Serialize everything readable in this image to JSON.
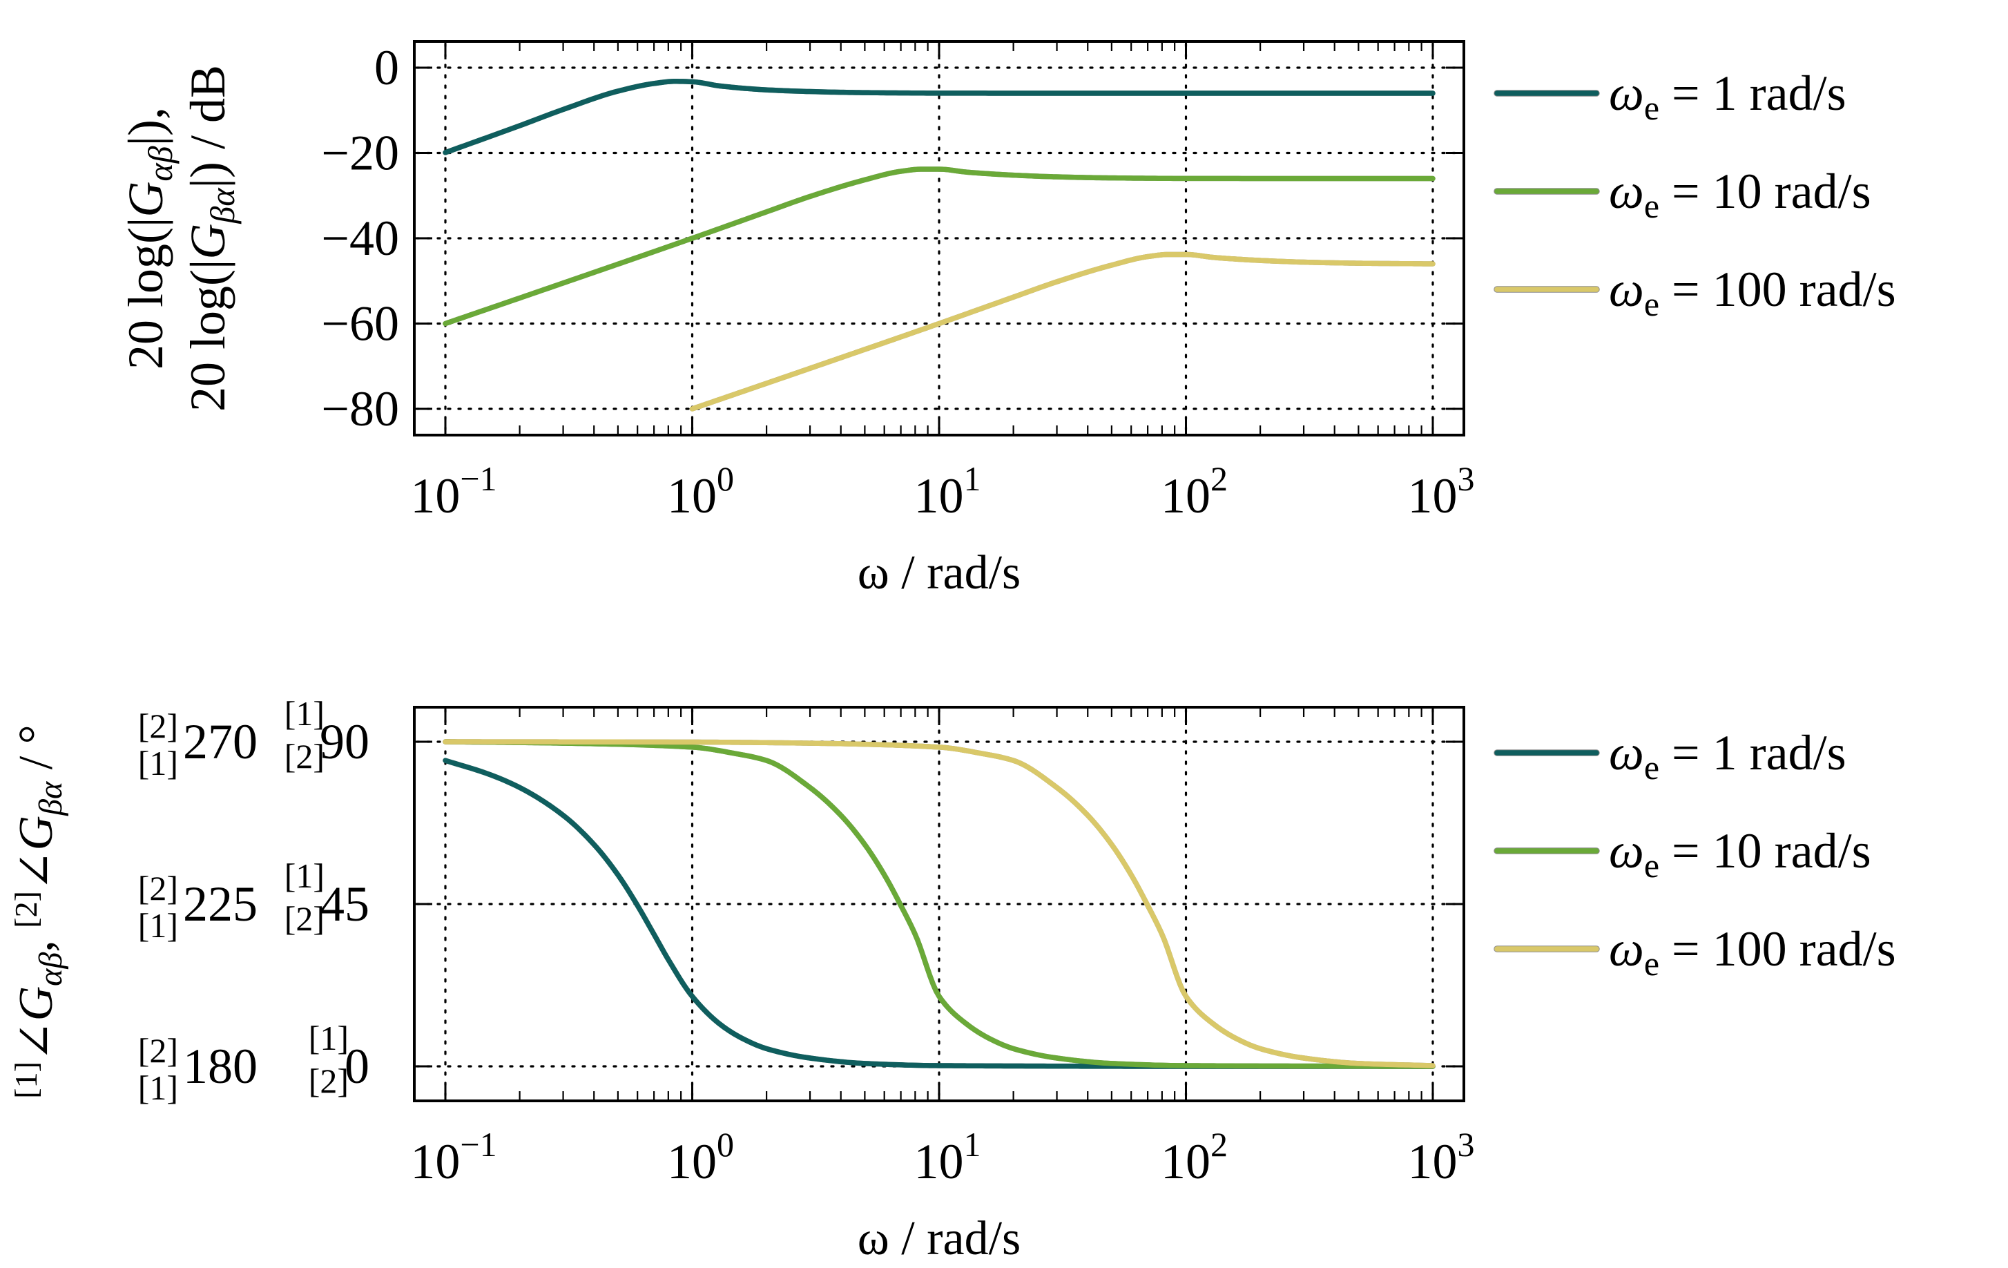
{
  "colors": {
    "we1": "#0f5e5e",
    "we10": "#6aa938",
    "we100": "#d9c869"
  },
  "chart_data": [
    {
      "type": "line",
      "xscale": "log",
      "xlim": [
        0.1,
        1000
      ],
      "ylim": [
        -80,
        0
      ],
      "grid": true,
      "legend_position": "outside-right",
      "xlabel": "ω / rad/s",
      "ylabel_lines": [
        "20 log(|G_αβ|),",
        "20 log(|G_βα|) / dB"
      ],
      "x_ticks": [
        {
          "base": "10",
          "exp": "−1"
        },
        {
          "base": "10",
          "exp": "0"
        },
        {
          "base": "10",
          "exp": "1"
        },
        {
          "base": "10",
          "exp": "2"
        },
        {
          "base": "10",
          "exp": "3"
        }
      ],
      "y_ticks": [
        {
          "value": 0,
          "label": "0"
        },
        {
          "value": -20,
          "label": "−20"
        },
        {
          "value": -40,
          "label": "−40"
        },
        {
          "value": -60,
          "label": "−60"
        },
        {
          "value": -80,
          "label": "−80"
        }
      ],
      "series": [
        {
          "name": "ωe = 1 rad/s",
          "label": {
            "sym": "ω",
            "sub": "e",
            "rest": " = 1 rad/s"
          },
          "color_key": "we1",
          "x": [
            0.1,
            0.2,
            0.3,
            0.5,
            0.7,
            0.85,
            1.0,
            1.3,
            2,
            3,
            5,
            10,
            100,
            1000
          ],
          "y": [
            -19.9,
            -13.6,
            -9.8,
            -5.5,
            -3.7,
            -3.2,
            -3.3,
            -4.3,
            -5.2,
            -5.6,
            -5.85,
            -5.97,
            -6.0,
            -6.0
          ]
        },
        {
          "name": "ωe = 10 rad/s",
          "label": {
            "sym": "ω",
            "sub": "e",
            "rest": " = 10 rad/s"
          },
          "color_key": "we10",
          "x": [
            0.1,
            0.3,
            1,
            2,
            3,
            5,
            7,
            8.5,
            10,
            13,
            20,
            30,
            50,
            100,
            1000
          ],
          "y": [
            -60,
            -50.5,
            -40,
            -33.8,
            -30.2,
            -26.3,
            -24.3,
            -23.8,
            -23.8,
            -24.5,
            -25.2,
            -25.6,
            -25.85,
            -25.97,
            -26.0
          ]
        },
        {
          "name": "ωe = 100 rad/s",
          "label": {
            "sym": "ω",
            "sub": "e",
            "rest": " = 100 rad/s"
          },
          "color_key": "we100",
          "x": [
            1,
            3,
            10,
            20,
            30,
            50,
            70,
            85,
            100,
            130,
            200,
            300,
            500,
            1000
          ],
          "y": [
            -80,
            -70.5,
            -60,
            -53.8,
            -50.2,
            -46.3,
            -44.3,
            -43.8,
            -43.8,
            -44.5,
            -45.2,
            -45.6,
            -45.85,
            -46.0
          ]
        }
      ]
    },
    {
      "type": "line",
      "xscale": "log",
      "xlim": [
        0.1,
        1000
      ],
      "ylim": [
        0,
        90
      ],
      "grid": true,
      "legend_position": "outside-right",
      "xlabel": "ω / rad/s",
      "ylabel": "[1]∠G_αβ, [2]∠G_βα / °",
      "x_ticks": [
        {
          "base": "10",
          "exp": "−1"
        },
        {
          "base": "10",
          "exp": "0"
        },
        {
          "base": "10",
          "exp": "1"
        },
        {
          "base": "10",
          "exp": "2"
        },
        {
          "base": "10",
          "exp": "3"
        }
      ],
      "y_ticks": [
        {
          "value": 90,
          "outer_label": "270",
          "inner_label": "90",
          "outer_top_tag": "[2]",
          "outer_bottom_tag": "[1]",
          "inner_top_tag": "[1]",
          "inner_bottom_tag": "[2]"
        },
        {
          "value": 45,
          "outer_label": "225",
          "inner_label": "45",
          "outer_top_tag": "[2]",
          "outer_bottom_tag": "[1]",
          "inner_top_tag": "[1]",
          "inner_bottom_tag": "[2]"
        },
        {
          "value": 0,
          "outer_label": "180",
          "inner_label": "0",
          "outer_top_tag": "[2]",
          "outer_bottom_tag": "[1]",
          "inner_top_tag": "[1]",
          "inner_bottom_tag": "[2]"
        }
      ],
      "series": [
        {
          "name": "ωe = 1 rad/s",
          "label": {
            "sym": "ω",
            "sub": "e",
            "rest": " = 1 rad/s"
          },
          "color_key": "we1",
          "x": [
            0.1,
            0.15,
            0.2,
            0.3,
            0.4,
            0.5,
            0.6,
            0.7,
            0.8,
            1.0,
            1.3,
            1.6,
            2,
            3,
            5,
            10,
            100,
            1000
          ],
          "y": [
            84.8,
            81.0,
            77.3,
            69.6,
            61.5,
            53.1,
            44.6,
            36.6,
            29.6,
            19.4,
            11.6,
            7.7,
            4.9,
            2.3,
            0.8,
            0.2,
            0,
            0
          ]
        },
        {
          "name": "ωe = 10 rad/s",
          "label": {
            "sym": "ω",
            "sub": "e",
            "rest": " = 10 rad/s"
          },
          "color_key": "we10",
          "x": [
            0.1,
            0.3,
            1,
            1.5,
            2,
            3,
            4,
            5,
            6,
            7,
            8,
            10,
            13,
            16,
            20,
            30,
            50,
            100,
            1000
          ],
          "y": [
            90,
            89.6,
            88.5,
            86.7,
            84.8,
            77.3,
            69.6,
            61.5,
            53.1,
            44.6,
            36.6,
            19.4,
            11.6,
            7.7,
            4.9,
            2.3,
            0.8,
            0.2,
            0
          ]
        },
        {
          "name": "ωe = 100 rad/s",
          "label": {
            "sym": "ω",
            "sub": "e",
            "rest": " = 100 rad/s"
          },
          "color_key": "we100",
          "x": [
            0.1,
            1,
            3,
            10,
            15,
            20,
            30,
            40,
            50,
            60,
            70,
            80,
            100,
            130,
            160,
            200,
            300,
            500,
            1000
          ],
          "y": [
            90,
            89.9,
            89.6,
            88.5,
            86.7,
            84.8,
            77.3,
            69.6,
            61.5,
            53.1,
            44.6,
            36.6,
            19.4,
            11.6,
            7.7,
            4.9,
            2.3,
            0.8,
            0.2
          ]
        }
      ]
    }
  ]
}
